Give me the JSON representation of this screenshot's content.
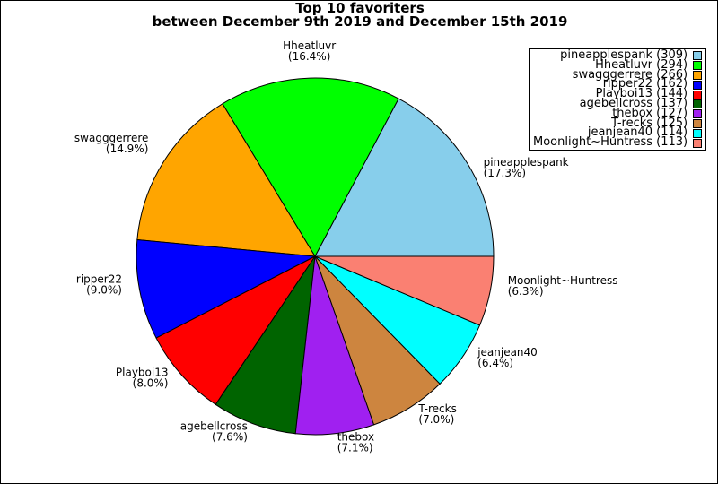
{
  "chart_data": {
    "type": "pie",
    "title": "Top 10 favoriters",
    "subtitle": "between December 9th 2019 and December 15th 2019",
    "legend_position": "top-right",
    "start_angle_deg": 0,
    "direction": "counterclockwise",
    "slices": [
      {
        "name": "pineapplespank",
        "value": 309,
        "pct": "17.3%",
        "color": "#87CEEB"
      },
      {
        "name": "Hheatluvr",
        "value": 294,
        "pct": "16.4%",
        "color": "#00FF00"
      },
      {
        "name": "swagggerrere",
        "value": 266,
        "pct": "14.9%",
        "color": "#FFA500"
      },
      {
        "name": "ripper22",
        "value": 162,
        "pct": "9.0%",
        "color": "#0000FF"
      },
      {
        "name": "Playboi13",
        "value": 144,
        "pct": "8.0%",
        "color": "#FF0000"
      },
      {
        "name": "agebellcross",
        "value": 137,
        "pct": "7.6%",
        "color": "#006400"
      },
      {
        "name": "thebox",
        "value": 127,
        "pct": "7.1%",
        "color": "#A020F0"
      },
      {
        "name": "T-recks",
        "value": 125,
        "pct": "7.0%",
        "color": "#CD853F"
      },
      {
        "name": "jeanjean40",
        "value": 114,
        "pct": "6.4%",
        "color": "#00FFFF"
      },
      {
        "name": "Moonlight~Huntress",
        "value": 113,
        "pct": "6.3%",
        "color": "#FA8072"
      }
    ]
  }
}
